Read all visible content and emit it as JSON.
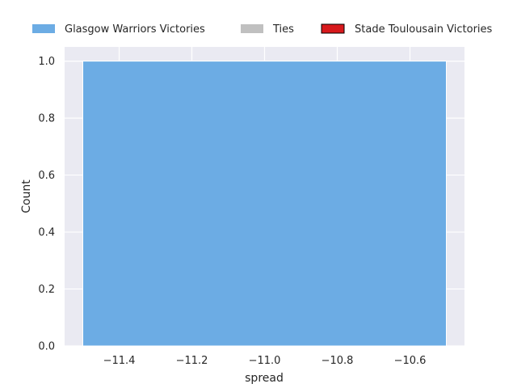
{
  "chart_data": {
    "type": "bar",
    "xlabel": "spread",
    "ylabel": "Count",
    "xlim": [
      -11.55,
      -10.45
    ],
    "ylim": [
      0,
      1.05
    ],
    "xticks": [
      -11.4,
      -11.2,
      -11.0,
      -10.8,
      -10.6
    ],
    "xtick_labels": [
      "−11.4",
      "−11.2",
      "−11.0",
      "−10.8",
      "−10.6"
    ],
    "yticks": [
      0.0,
      0.2,
      0.4,
      0.6,
      0.8,
      1.0
    ],
    "ytick_labels": [
      "0.0",
      "0.2",
      "0.4",
      "0.6",
      "0.8",
      "1.0"
    ],
    "grid": true,
    "legend_position": "top",
    "series": [
      {
        "name": "Glasgow Warriors Victories",
        "color": "#6cace4",
        "bars": [
          {
            "x0": -11.5,
            "x1": -10.5,
            "value": 1
          }
        ]
      },
      {
        "name": "Ties",
        "color": "#c0c0c0",
        "bars": []
      },
      {
        "name": "Stade Toulousain Victories",
        "color": "#d7191c",
        "edge": "#000000",
        "bars": []
      }
    ]
  }
}
